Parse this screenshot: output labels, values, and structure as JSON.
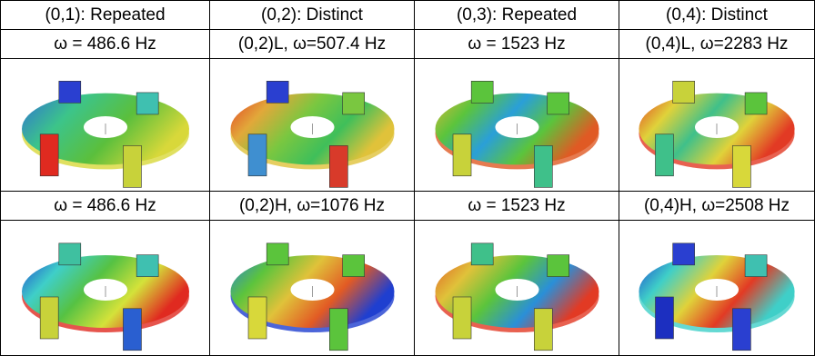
{
  "header": [
    "(0,1): Repeated",
    "(0,2): Distinct",
    "(0,3): Repeated",
    "(0,4): Distinct"
  ],
  "table": {
    "rows": [
      [
        "ω = 486.6 Hz",
        "(0,2)L, ω=507.4 Hz",
        "ω = 1523 Hz",
        "(0,4)L, ω=2283 Hz"
      ],
      [
        "ω = 486.6 Hz",
        "(0,2)H, ω=1076 Hz",
        "ω = 1523 Hz",
        "(0,4)H, ω=2508 Hz"
      ]
    ]
  }
}
